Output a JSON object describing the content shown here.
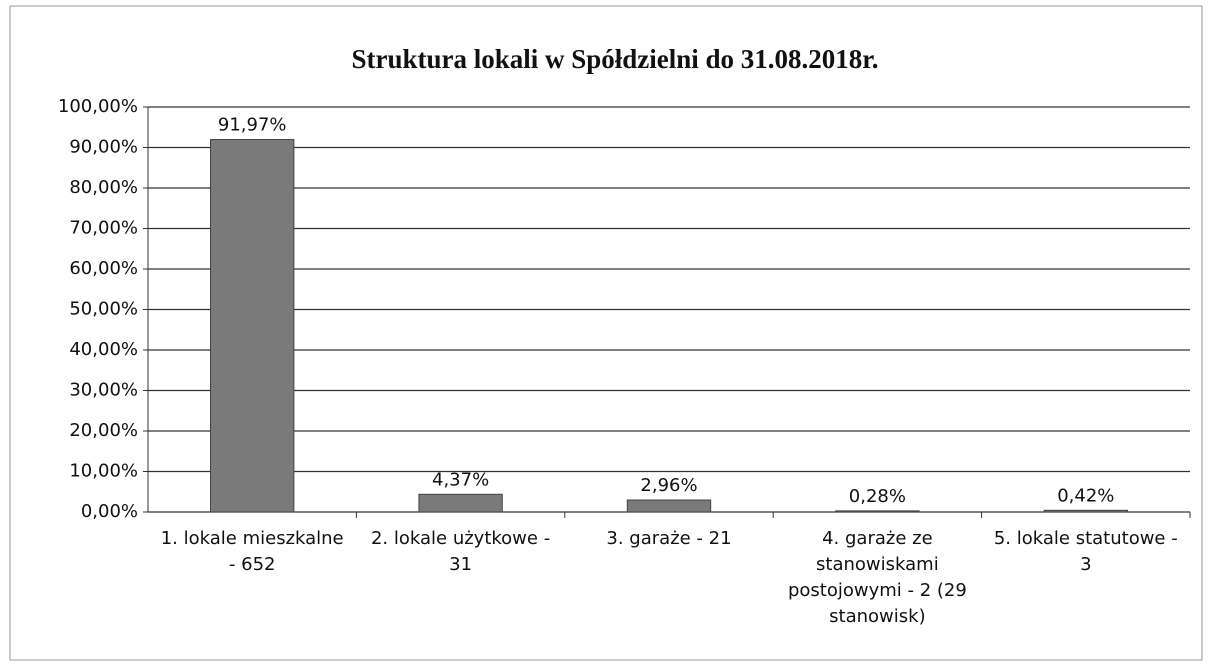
{
  "chart_data": {
    "type": "bar",
    "title": "Struktura lokali w Spółdzielni do 31.08.2018r.",
    "categories": [
      "1. lokale mieszkalne - 652",
      "2. lokale użytkowe - 31",
      "3. garaże - 21",
      "4. garaże ze stanowiskami postojowymi - 2 (29 stanowisk)",
      "5. lokale statutowe - 3"
    ],
    "values": [
      91.97,
      4.37,
      2.96,
      0.28,
      0.42
    ],
    "value_labels": [
      "91,97%",
      "4,37%",
      "2,96%",
      "0,28%",
      "0,42%"
    ],
    "color": "#7a7a7a",
    "ylim": [
      0,
      100
    ],
    "yticks": [
      {
        "value": 0,
        "label": "0,00%"
      },
      {
        "value": 10,
        "label": "10,00%"
      },
      {
        "value": 20,
        "label": "20,00%"
      },
      {
        "value": 30,
        "label": "30,00%"
      },
      {
        "value": 40,
        "label": "40,00%"
      },
      {
        "value": 50,
        "label": "50,00%"
      },
      {
        "value": 60,
        "label": "60,00%"
      },
      {
        "value": 70,
        "label": "70,00%"
      },
      {
        "value": 80,
        "label": "80,00%"
      },
      {
        "value": 90,
        "label": "90,00%"
      },
      {
        "value": 100,
        "label": "100,00%"
      }
    ],
    "grid": true
  }
}
